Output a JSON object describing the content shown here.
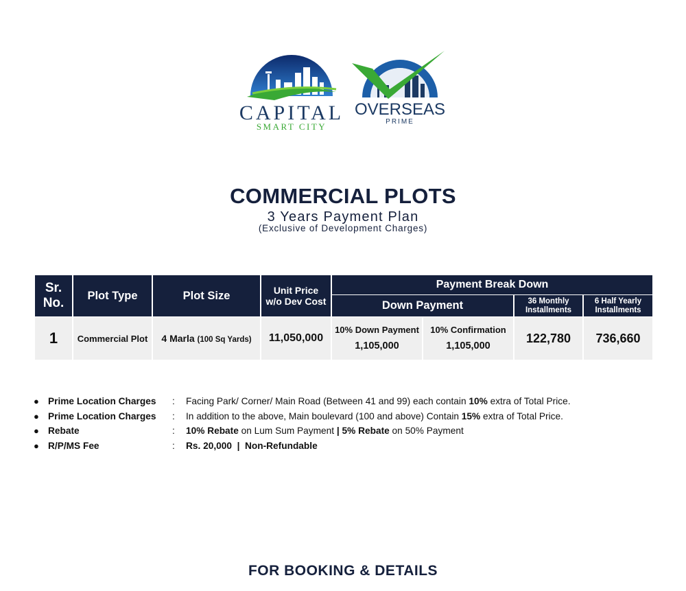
{
  "logos": {
    "capital": {
      "line1": "CAPITAL",
      "line2": "SMART CITY"
    },
    "overseas": {
      "line1": "OVERSEAS",
      "line2": "PRIME"
    }
  },
  "header": {
    "title": "COMMERCIAL PLOTS",
    "subtitle": "3 Years Payment Plan",
    "note": "(Exclusive of Development Charges)"
  },
  "table": {
    "headers": {
      "sr_line1": "Sr.",
      "sr_line2": "No.",
      "plot_type": "Plot Type",
      "plot_size": "Plot Size",
      "unit_price_line1": "Unit Price",
      "unit_price_line2": "w/o Dev Cost",
      "breakdown": "Payment Break Down",
      "down_payment": "Down Payment",
      "monthly_line1": "36 Monthly",
      "monthly_line2": "Installments",
      "half_yearly_line1": "6 Half Yearly",
      "half_yearly_line2": "Installments"
    },
    "rows": [
      {
        "sr": "1",
        "plot_type": "Commercial Plot",
        "plot_size": "4 Marla",
        "plot_size_note": "(100 Sq Yards)",
        "unit_price": "11,050,000",
        "down_payment_label": "10% Down Payment",
        "down_payment_amount": "1,105,000",
        "confirmation_label": "10% Confirmation",
        "confirmation_amount": "1,105,000",
        "monthly": "122,780",
        "half_yearly": "736,660"
      }
    ]
  },
  "notes": [
    {
      "label": "Prime Location Charges",
      "text_a": "Facing Park/ Corner/ Main Road (Between 41 and 99) each contain ",
      "bold_a": "10%",
      "text_b": " extra of Total Price."
    },
    {
      "label": "Prime Location Charges",
      "text_a": "In addition to the above, Main boulevard (100 and above) Contain ",
      "bold_a": "15%",
      "text_b": " extra of Total Price."
    },
    {
      "label": "Rebate",
      "bold_a": "10% Rebate",
      "text_a": " on Lum Sum Payment ",
      "bold_b": "| 5% Rebate",
      "text_b": " on 50% Payment"
    },
    {
      "label": "R/P/MS Fee",
      "bold_a": "Rs. 20,000  |  Non-Refundable"
    }
  ],
  "footer": {
    "title": "FOR BOOKING & DETAILS"
  },
  "colors": {
    "navy": "#15203c",
    "green": "#3aa935",
    "blue": "#1d5fa8",
    "cell": "#efefef"
  }
}
